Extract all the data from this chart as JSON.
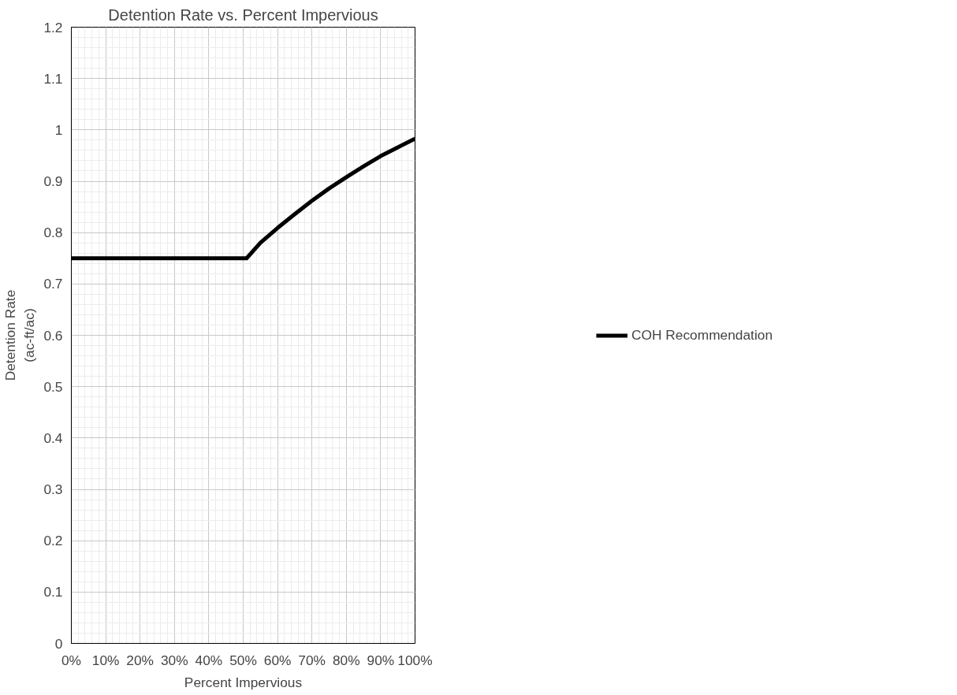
{
  "chart_data": {
    "type": "line",
    "title": "Detention Rate vs. Percent Impervious",
    "xlabel": "Percent Impervious",
    "ylabel": "Detention Rate\n(ac-ft/ac)",
    "series": [
      {
        "name": "COH Recommendation",
        "color": "#000000",
        "x": [
          0,
          10,
          20,
          30,
          40,
          51,
          55,
          60,
          65,
          70,
          75,
          80,
          85,
          90,
          95,
          100
        ],
        "values": [
          0.75,
          0.75,
          0.75,
          0.75,
          0.75,
          0.75,
          0.78,
          0.809,
          0.836,
          0.862,
          0.886,
          0.908,
          0.929,
          0.949,
          0.966,
          0.983
        ]
      }
    ],
    "xlim": [
      0,
      100
    ],
    "ylim": [
      0,
      1.2
    ],
    "xticks": [
      {
        "value": 0,
        "label": "0%"
      },
      {
        "value": 10,
        "label": "10%"
      },
      {
        "value": 20,
        "label": "20%"
      },
      {
        "value": 30,
        "label": "30%"
      },
      {
        "value": 40,
        "label": "40%"
      },
      {
        "value": 50,
        "label": "50%"
      },
      {
        "value": 60,
        "label": "60%"
      },
      {
        "value": 70,
        "label": "70%"
      },
      {
        "value": 80,
        "label": "80%"
      },
      {
        "value": 90,
        "label": "90%"
      },
      {
        "value": 100,
        "label": "100%"
      }
    ],
    "yticks": [
      0,
      0.1,
      0.2,
      0.3,
      0.4,
      0.5,
      0.6,
      0.7,
      0.8,
      0.9,
      1,
      1.1,
      1.2
    ],
    "grid": true,
    "legend": "right",
    "marker": "none",
    "line_style": "solid"
  }
}
